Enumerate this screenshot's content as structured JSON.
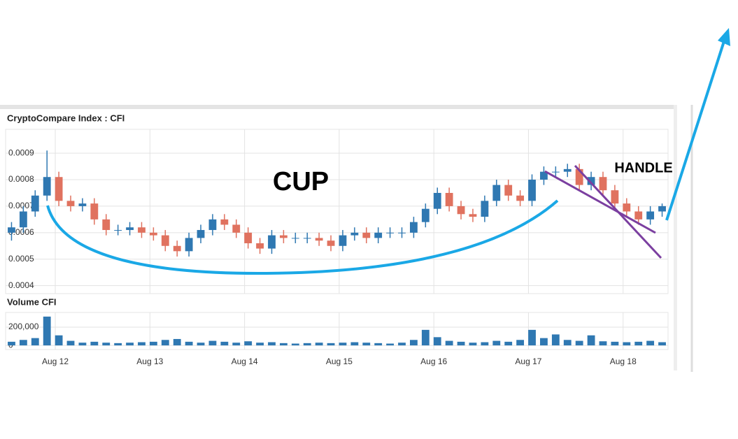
{
  "chart_data": {
    "type": "candlestick",
    "title": "CryptoCompare Index : CFI",
    "volume_title": "Volume CFI",
    "up_color": "#2f78b2",
    "down_color": "#e0725f",
    "grid": true,
    "xlim": [
      0,
      56
    ],
    "xticks": [
      {
        "value": 4.2,
        "label": "Aug 12"
      },
      {
        "value": 12.2,
        "label": "Aug 13"
      },
      {
        "value": 20.2,
        "label": "Aug 14"
      },
      {
        "value": 28.2,
        "label": "Aug 15"
      },
      {
        "value": 36.2,
        "label": "Aug 16"
      },
      {
        "value": 44.2,
        "label": "Aug 17"
      },
      {
        "value": 52.2,
        "label": "Aug 18"
      }
    ],
    "ylim": [
      0.00037,
      0.00099
    ],
    "yticks": [
      0.0004,
      0.0005,
      0.0006,
      0.0007,
      0.0008,
      0.0009
    ],
    "open": [
      0.0006,
      0.00062,
      0.00068,
      0.00074,
      0.00081,
      0.00072,
      0.0007,
      0.00071,
      0.00065,
      0.00061,
      0.00061,
      0.00062,
      0.0006,
      0.00059,
      0.00055,
      0.00053,
      0.00058,
      0.00061,
      0.00065,
      0.00063,
      0.0006,
      0.00056,
      0.00054,
      0.00059,
      0.00058,
      0.00058,
      0.00058,
      0.00057,
      0.00055,
      0.00059,
      0.0006,
      0.00058,
      0.0006,
      0.0006,
      0.0006,
      0.00064,
      0.00069,
      0.00075,
      0.0007,
      0.00067,
      0.00066,
      0.00072,
      0.00078,
      0.00074,
      0.00072,
      0.0008,
      0.00083,
      0.00083,
      0.00084,
      0.00078,
      0.00081,
      0.00076,
      0.00071,
      0.00068,
      0.00065,
      0.00068
    ],
    "high": [
      0.00064,
      0.0007,
      0.00076,
      0.00091,
      0.00083,
      0.00074,
      0.00073,
      0.00073,
      0.00067,
      0.00063,
      0.00064,
      0.00064,
      0.00062,
      0.00061,
      0.00057,
      0.0006,
      0.00063,
      0.00067,
      0.00067,
      0.00065,
      0.00062,
      0.00058,
      0.00061,
      0.00061,
      0.0006,
      0.0006,
      0.0006,
      0.00059,
      0.00061,
      0.00062,
      0.00062,
      0.00062,
      0.00062,
      0.00062,
      0.00066,
      0.00071,
      0.00077,
      0.00077,
      0.00072,
      0.00069,
      0.00074,
      0.0008,
      0.0008,
      0.00076,
      0.00082,
      0.00085,
      0.00085,
      0.00086,
      0.00086,
      0.00083,
      0.00083,
      0.00078,
      0.00073,
      0.0007,
      0.0007,
      0.00071
    ],
    "low": [
      0.00057,
      0.0006,
      0.00066,
      0.00072,
      0.0007,
      0.00068,
      0.00068,
      0.00063,
      0.00059,
      0.00059,
      0.00059,
      0.00058,
      0.00057,
      0.00053,
      0.00051,
      0.00051,
      0.00056,
      0.00059,
      0.00061,
      0.00058,
      0.00054,
      0.00052,
      0.00052,
      0.00056,
      0.00056,
      0.00056,
      0.00055,
      0.00053,
      0.00053,
      0.00057,
      0.00056,
      0.00056,
      0.00058,
      0.00058,
      0.00058,
      0.00062,
      0.00067,
      0.00068,
      0.00065,
      0.00064,
      0.00064,
      0.0007,
      0.00072,
      0.0007,
      0.0007,
      0.00078,
      0.00081,
      0.00081,
      0.00076,
      0.00076,
      0.00074,
      0.00069,
      0.00066,
      0.00063,
      0.00063,
      0.00066
    ],
    "close": [
      0.00062,
      0.00068,
      0.00074,
      0.00081,
      0.00072,
      0.0007,
      0.00071,
      0.00065,
      0.00061,
      0.00061,
      0.00062,
      0.0006,
      0.00059,
      0.00055,
      0.00053,
      0.00058,
      0.00061,
      0.00065,
      0.00063,
      0.0006,
      0.00056,
      0.00054,
      0.00059,
      0.00058,
      0.00058,
      0.00058,
      0.00057,
      0.00055,
      0.00059,
      0.0006,
      0.00058,
      0.0006,
      0.0006,
      0.0006,
      0.00064,
      0.00069,
      0.00075,
      0.0007,
      0.00067,
      0.00066,
      0.00072,
      0.00078,
      0.00074,
      0.00072,
      0.0008,
      0.00083,
      0.00083,
      0.00084,
      0.00078,
      0.00081,
      0.00076,
      0.00071,
      0.00068,
      0.00065,
      0.00068,
      0.0007
    ],
    "volume": {
      "color": "#2f78b2",
      "ylim": [
        -45000,
        360000
      ],
      "yticks": [
        0,
        {
          "value": 200000,
          "label": "200,000"
        }
      ],
      "values": [
        40000,
        60000,
        80000,
        315000,
        110000,
        50000,
        30000,
        40000,
        30000,
        25000,
        30000,
        35000,
        40000,
        60000,
        70000,
        40000,
        30000,
        50000,
        40000,
        30000,
        45000,
        30000,
        35000,
        25000,
        20000,
        25000,
        30000,
        25000,
        30000,
        35000,
        30000,
        25000,
        20000,
        30000,
        60000,
        170000,
        90000,
        50000,
        40000,
        30000,
        35000,
        50000,
        40000,
        60000,
        170000,
        80000,
        120000,
        60000,
        50000,
        110000,
        45000,
        40000,
        35000,
        40000,
        50000,
        35000
      ]
    },
    "annotations": {
      "cup": "CUP",
      "handle": "HANDLE"
    }
  }
}
